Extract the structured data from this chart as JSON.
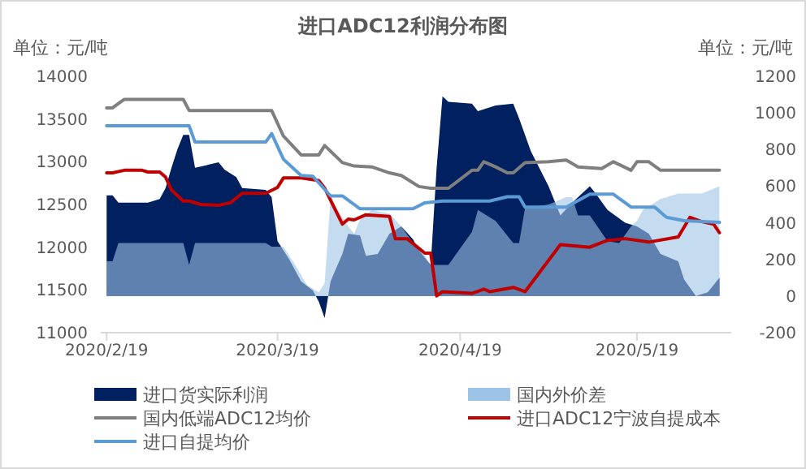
{
  "chart_data": {
    "type": "line",
    "title": "进口ADC12利润分布图",
    "ylabel": "单位：元/吨",
    "y2label": "单位：元/吨",
    "legend": "bottom",
    "xlim": [
      "2020-02-18",
      "2020-06-04"
    ],
    "xticks": [
      {
        "value": "2020-02-19",
        "label": "2020/2/19"
      },
      {
        "value": "2020-03-19",
        "label": "2020/3/19"
      },
      {
        "value": "2020-04-19",
        "label": "2020/4/19"
      },
      {
        "value": "2020-05-19",
        "label": "2020/5/19"
      }
    ],
    "ylim": [
      11000,
      14000
    ],
    "yticks": [
      11000,
      11500,
      12000,
      12500,
      13000,
      13500,
      14000
    ],
    "y2lim": [
      -200,
      1200
    ],
    "y2ticks": [
      -200,
      0,
      200,
      400,
      600,
      800,
      1000,
      1200
    ],
    "series": [
      {
        "name": "进口货实际利润",
        "type": "area",
        "axis": "y2",
        "color": "#002060",
        "x": [
          "2020-02-19",
          "2020-02-20",
          "2020-02-21",
          "2020-02-26",
          "2020-02-28",
          "2020-02-29",
          "2020-03-01",
          "2020-03-02",
          "2020-03-03",
          "2020-03-04",
          "2020-03-05",
          "2020-03-09",
          "2020-03-10",
          "2020-03-12",
          "2020-03-13",
          "2020-03-17",
          "2020-03-18",
          "2020-03-19",
          "2020-03-21",
          "2020-03-23",
          "2020-03-25",
          "2020-03-26",
          "2020-03-27",
          "2020-03-28",
          "2020-03-30",
          "2020-03-31",
          "2020-04-02",
          "2020-04-03",
          "2020-04-05",
          "2020-04-07",
          "2020-04-09",
          "2020-04-11",
          "2020-04-12",
          "2020-04-14",
          "2020-04-15",
          "2020-04-16",
          "2020-04-17",
          "2020-04-21",
          "2020-04-22",
          "2020-04-25",
          "2020-04-28",
          "2020-04-29",
          "2020-05-01",
          "2020-05-04",
          "2020-05-06",
          "2020-05-08",
          "2020-05-11",
          "2020-05-12",
          "2020-05-14",
          "2020-05-17",
          "2020-05-19",
          "2020-05-21",
          "2020-05-23",
          "2020-05-26",
          "2020-05-27",
          "2020-05-29",
          "2020-05-31",
          "2020-06-02"
        ],
        "values": [
          550,
          550,
          510,
          510,
          530,
          590,
          700,
          800,
          880,
          880,
          700,
          730,
          690,
          650,
          590,
          580,
          540,
          300,
          200,
          80,
          30,
          -30,
          -120,
          80,
          230,
          340,
          330,
          220,
          230,
          340,
          380,
          310,
          250,
          170,
          700,
          1090,
          1060,
          1050,
          1010,
          1040,
          1050,
          970,
          790,
          600,
          440,
          510,
          600,
          560,
          470,
          400,
          380,
          340,
          230,
          190,
          90,
          0,
          20,
          100
        ]
      },
      {
        "name": "国内外价差",
        "type": "area",
        "axis": "y2",
        "color": "#9dc3e6",
        "x": [
          "2020-02-19",
          "2020-02-20",
          "2020-02-21",
          "2020-03-03",
          "2020-03-04",
          "2020-03-05",
          "2020-03-17",
          "2020-03-18",
          "2020-03-20",
          "2020-03-22",
          "2020-03-24",
          "2020-03-26",
          "2020-03-27",
          "2020-03-28",
          "2020-03-29",
          "2020-03-31",
          "2020-04-01",
          "2020-04-02",
          "2020-04-04",
          "2020-04-07",
          "2020-04-09",
          "2020-04-11",
          "2020-04-13",
          "2020-04-14",
          "2020-04-17",
          "2020-04-21",
          "2020-04-22",
          "2020-04-25",
          "2020-04-28",
          "2020-04-29",
          "2020-04-30",
          "2020-05-04",
          "2020-05-07",
          "2020-05-08",
          "2020-05-09",
          "2020-05-11",
          "2020-05-14",
          "2020-05-16",
          "2020-05-18",
          "2020-05-19",
          "2020-05-20",
          "2020-05-23",
          "2020-05-26",
          "2020-05-30",
          "2020-06-02"
        ],
        "values": [
          190,
          190,
          290,
          290,
          170,
          290,
          290,
          270,
          270,
          170,
          60,
          20,
          70,
          540,
          480,
          380,
          340,
          420,
          470,
          450,
          380,
          290,
          220,
          170,
          170,
          350,
          470,
          410,
          290,
          290,
          480,
          500,
          540,
          540,
          440,
          440,
          300,
          290,
          380,
          410,
          470,
          530,
          560,
          560,
          600
        ]
      },
      {
        "name": "国内低端ADC12均价",
        "color": "#7f7f7f",
        "x": [
          "2020-02-19",
          "2020-02-20",
          "2020-02-22",
          "2020-03-03",
          "2020-03-04",
          "2020-03-18",
          "2020-03-20",
          "2020-03-23",
          "2020-03-26",
          "2020-03-27",
          "2020-03-30",
          "2020-04-01",
          "2020-04-04",
          "2020-04-07",
          "2020-04-09",
          "2020-04-12",
          "2020-04-14",
          "2020-04-17",
          "2020-04-21",
          "2020-04-22",
          "2020-04-23",
          "2020-04-25",
          "2020-04-27",
          "2020-04-28",
          "2020-04-30",
          "2020-05-04",
          "2020-05-07",
          "2020-05-09",
          "2020-05-13",
          "2020-05-15",
          "2020-05-18",
          "2020-05-19",
          "2020-05-21",
          "2020-05-23",
          "2020-06-02"
        ],
        "values": [
          13630,
          13630,
          13730,
          13730,
          13600,
          13600,
          13300,
          13080,
          13080,
          13190,
          12990,
          12950,
          12940,
          12870,
          12840,
          12710,
          12690,
          12690,
          12900,
          12900,
          13000,
          12940,
          12870,
          12870,
          12990,
          13000,
          13020,
          12940,
          12920,
          13000,
          12900,
          13000,
          13000,
          12900,
          12900
        ]
      },
      {
        "name": "进口ADC12宁波自提成本",
        "color": "#c00000",
        "x": [
          "2020-02-19",
          "2020-02-20",
          "2020-02-22",
          "2020-02-25",
          "2020-02-26",
          "2020-02-28",
          "2020-02-29",
          "2020-03-01",
          "2020-03-03",
          "2020-03-04",
          "2020-03-06",
          "2020-03-09",
          "2020-03-11",
          "2020-03-13",
          "2020-03-17",
          "2020-03-19",
          "2020-03-20",
          "2020-03-23",
          "2020-03-26",
          "2020-03-27",
          "2020-03-30",
          "2020-03-31",
          "2020-04-01",
          "2020-04-03",
          "2020-04-07",
          "2020-04-08",
          "2020-04-10",
          "2020-04-13",
          "2020-04-14",
          "2020-04-15",
          "2020-04-16",
          "2020-04-21",
          "2020-04-23",
          "2020-04-24",
          "2020-04-28",
          "2020-04-30",
          "2020-05-06",
          "2020-05-11",
          "2020-05-14",
          "2020-05-17",
          "2020-05-21",
          "2020-05-26",
          "2020-05-28",
          "2020-05-30",
          "2020-06-01",
          "2020-06-02"
        ],
        "values": [
          12870,
          12870,
          12900,
          12900,
          12880,
          12880,
          12820,
          12670,
          12540,
          12540,
          12500,
          12490,
          12520,
          12630,
          12630,
          12700,
          12810,
          12810,
          12780,
          12690,
          12270,
          12330,
          12320,
          12380,
          12360,
          12100,
          12100,
          11930,
          11930,
          11430,
          11480,
          11460,
          11510,
          11480,
          11530,
          11480,
          12030,
          12000,
          12080,
          12100,
          12060,
          12120,
          12350,
          12300,
          12270,
          12170
        ]
      },
      {
        "name": "进口自提均价",
        "color": "#5b9bd5",
        "x": [
          "2020-02-19",
          "2020-03-04",
          "2020-03-05",
          "2020-03-17",
          "2020-03-18",
          "2020-03-20",
          "2020-03-23",
          "2020-03-25",
          "2020-03-28",
          "2020-03-30",
          "2020-04-02",
          "2020-04-11",
          "2020-04-13",
          "2020-04-16",
          "2020-04-24",
          "2020-04-27",
          "2020-04-29",
          "2020-04-30",
          "2020-05-07",
          "2020-05-11",
          "2020-05-15",
          "2020-05-18",
          "2020-05-22",
          "2020-05-24",
          "2020-05-27",
          "2020-06-02"
        ],
        "values": [
          13420,
          13420,
          13230,
          13230,
          13330,
          13030,
          12840,
          12830,
          12600,
          12600,
          12450,
          12450,
          12520,
          12540,
          12540,
          12590,
          12590,
          12470,
          12470,
          12620,
          12620,
          12470,
          12470,
          12350,
          12310,
          12290
        ]
      }
    ]
  }
}
